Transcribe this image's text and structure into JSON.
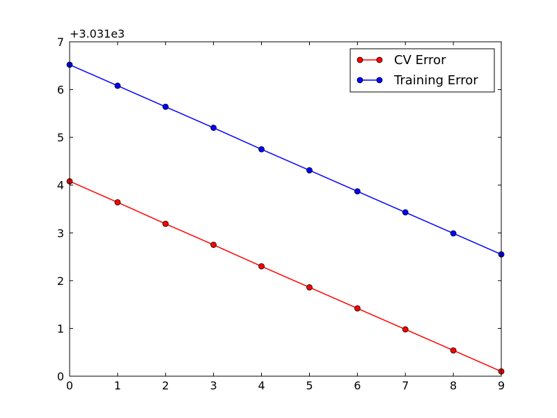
{
  "chart_data": {
    "type": "line",
    "title": "",
    "xlabel": "",
    "ylabel": "",
    "y_offset_label": "+3.031e3",
    "xlim": [
      0,
      9
    ],
    "ylim": [
      3031,
      3038
    ],
    "x_ticks": [
      "0",
      "1",
      "2",
      "3",
      "4",
      "5",
      "6",
      "7",
      "8",
      "9"
    ],
    "y_ticks": [
      "0",
      "1",
      "2",
      "3",
      "4",
      "5",
      "6",
      "7"
    ],
    "grid": false,
    "legend_position": "top-right",
    "x": [
      0,
      1,
      2,
      3,
      4,
      5,
      6,
      7,
      8,
      9
    ],
    "series": [
      {
        "name": "CV Error",
        "color": "#ff0000",
        "values": [
          3035.08,
          3034.64,
          3034.19,
          3033.75,
          3033.3,
          3032.86,
          3032.42,
          3031.98,
          3031.54,
          3031.1
        ]
      },
      {
        "name": "Training Error",
        "color": "#0000ff",
        "values": [
          3037.52,
          3037.08,
          3036.64,
          3036.2,
          3035.75,
          3035.31,
          3034.87,
          3034.43,
          3033.99,
          3033.55
        ]
      }
    ]
  }
}
